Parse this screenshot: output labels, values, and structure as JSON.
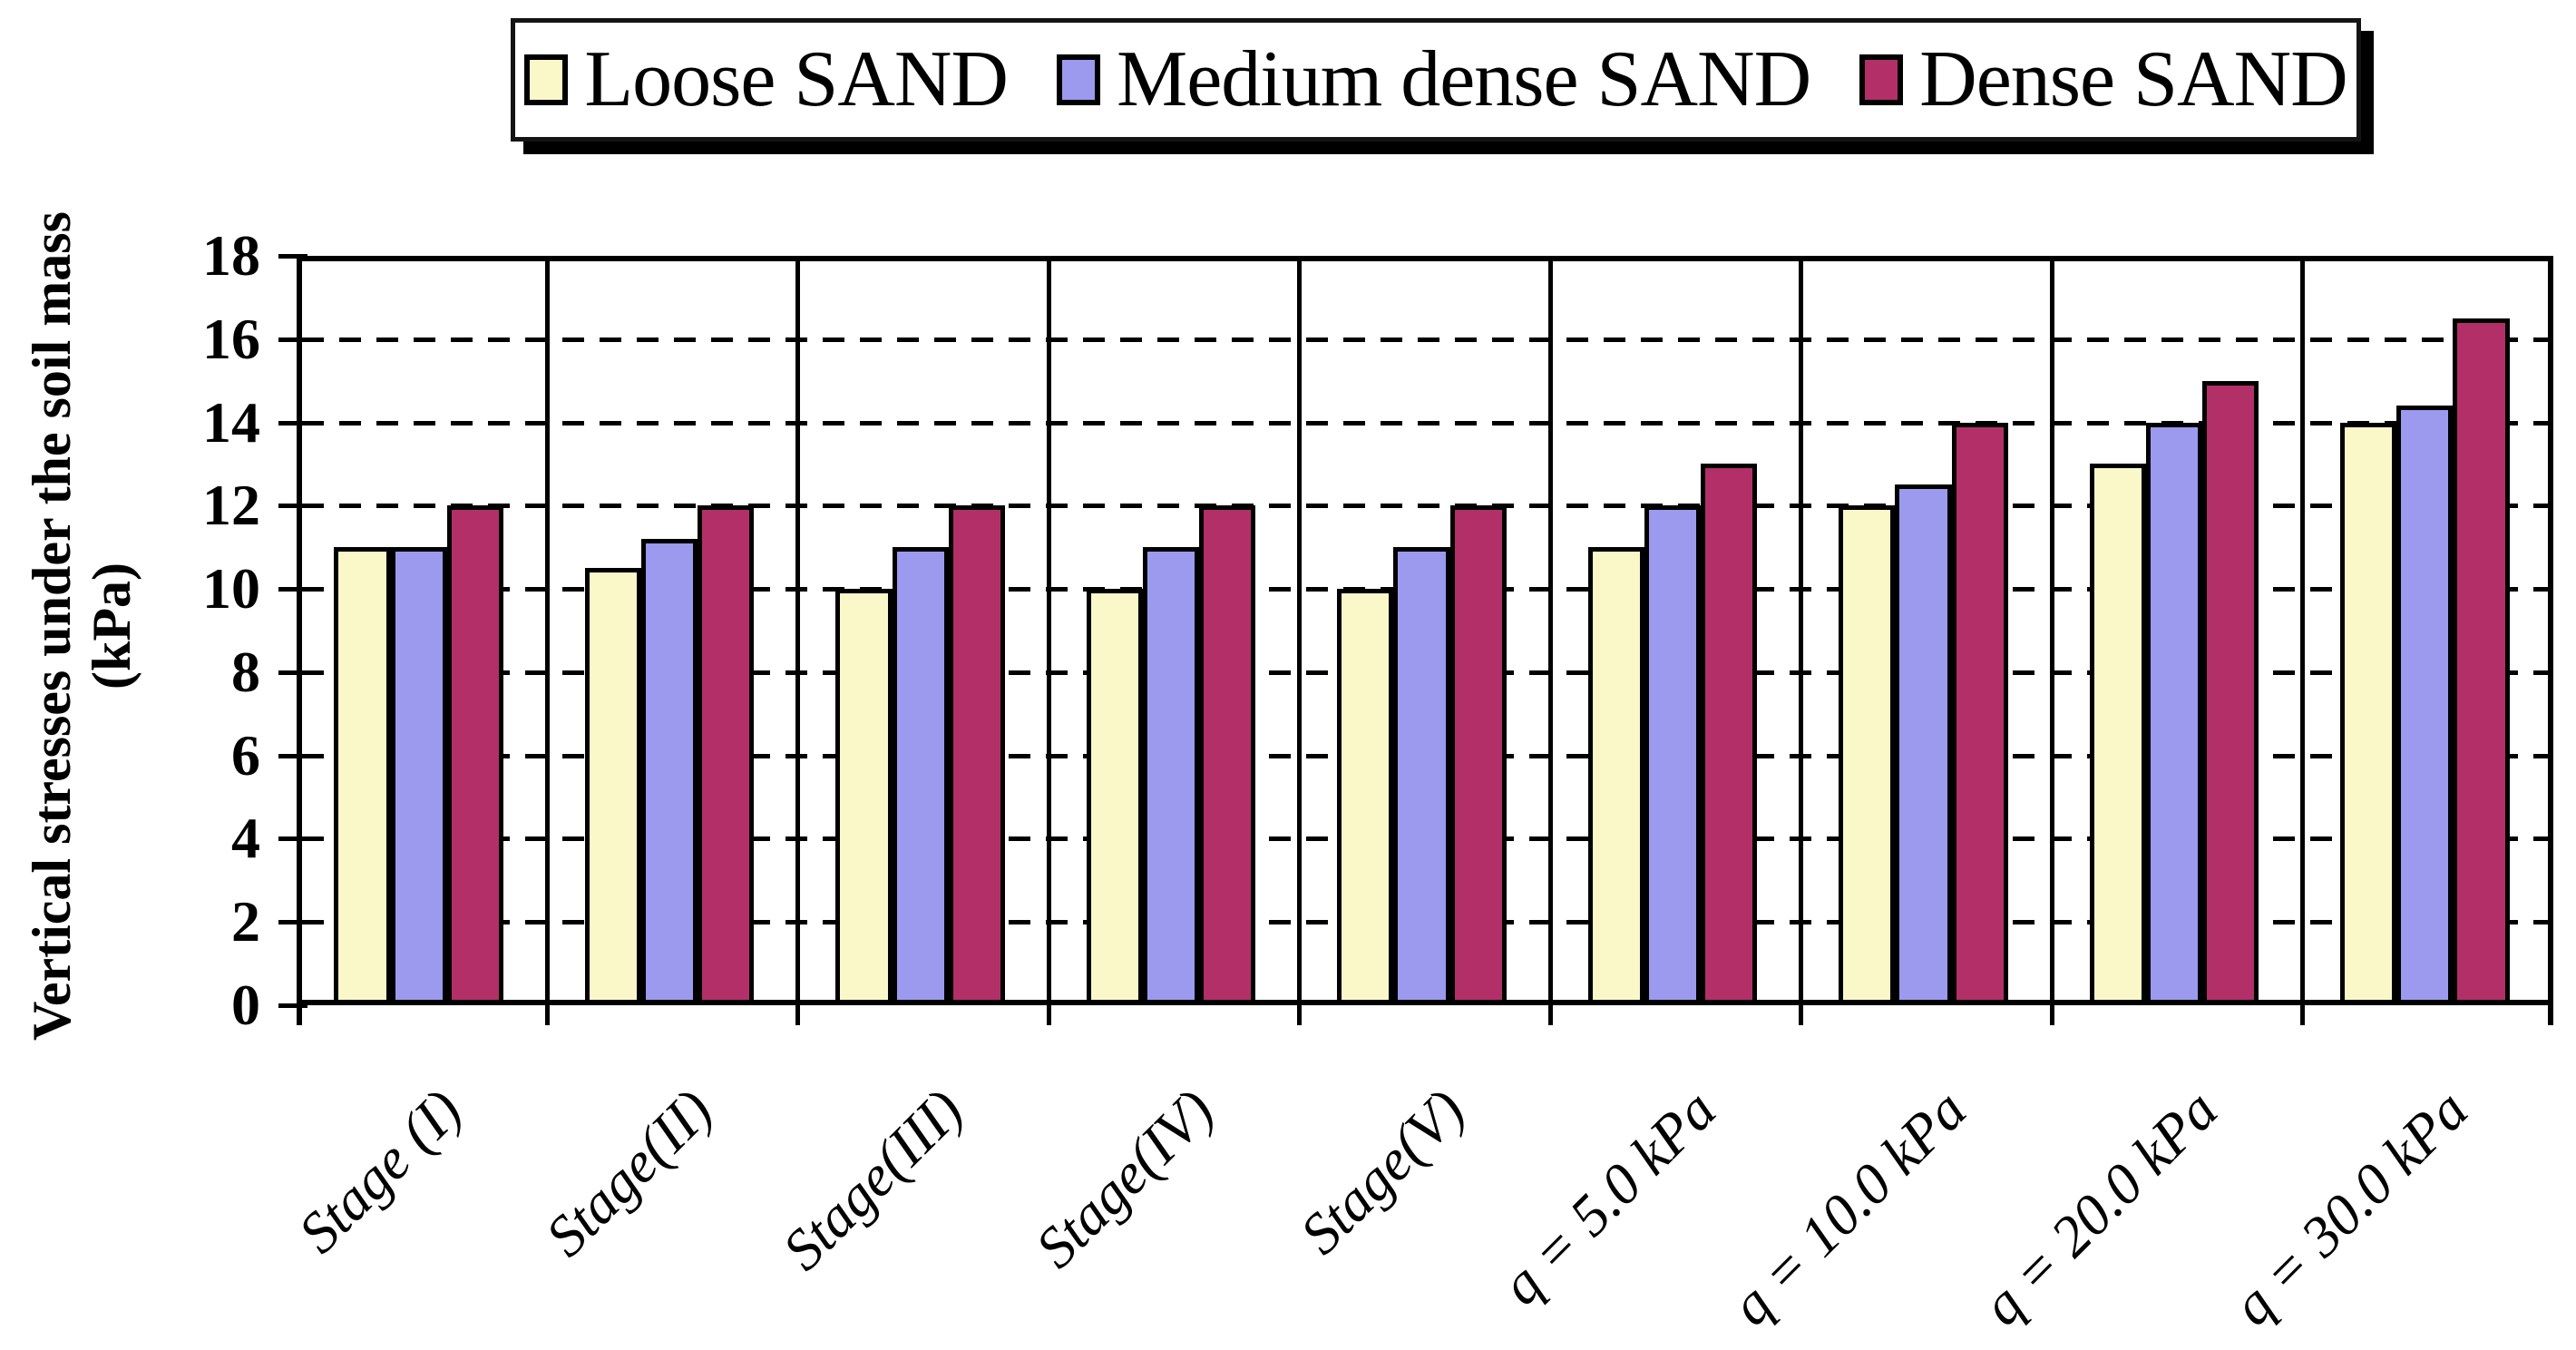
{
  "chart_data": {
    "type": "bar",
    "title": "",
    "ylabel_line1": "Vertical stresses under the soil mass",
    "ylabel_line2": "(kPa)",
    "ylim": [
      0,
      18
    ],
    "ytick_step": 2,
    "yticks": [
      0,
      2,
      4,
      6,
      8,
      10,
      12,
      14,
      16,
      18
    ],
    "grid": "dashed horizontal gridlines every 2 units, solid vertical separators between categories",
    "legend_position": "top",
    "categories": [
      "Stage (I)",
      "Stage(II)",
      "Stage(III)",
      "Stage(IV)",
      "Stage(V)",
      "q = 5.0 kPa",
      "q = 10.0 kPa",
      "q = 20.0 kPa",
      "q = 30.0 kPa"
    ],
    "series": [
      {
        "name": "Loose SAND",
        "color": "#FAF8C8",
        "values": [
          11,
          10.5,
          10,
          10,
          10,
          11,
          12,
          13,
          14
        ]
      },
      {
        "name": "Medium dense SAND",
        "color": "#9B9AEF",
        "values": [
          11,
          11.2,
          11,
          11,
          11,
          12,
          12.5,
          14,
          14.4
        ]
      },
      {
        "name": "Dense SAND",
        "color": "#B23067",
        "values": [
          12,
          12,
          12,
          12,
          12,
          13,
          14,
          15,
          16.5
        ]
      }
    ],
    "frame_color": "#000000",
    "background_color": "#FFFFFF"
  }
}
